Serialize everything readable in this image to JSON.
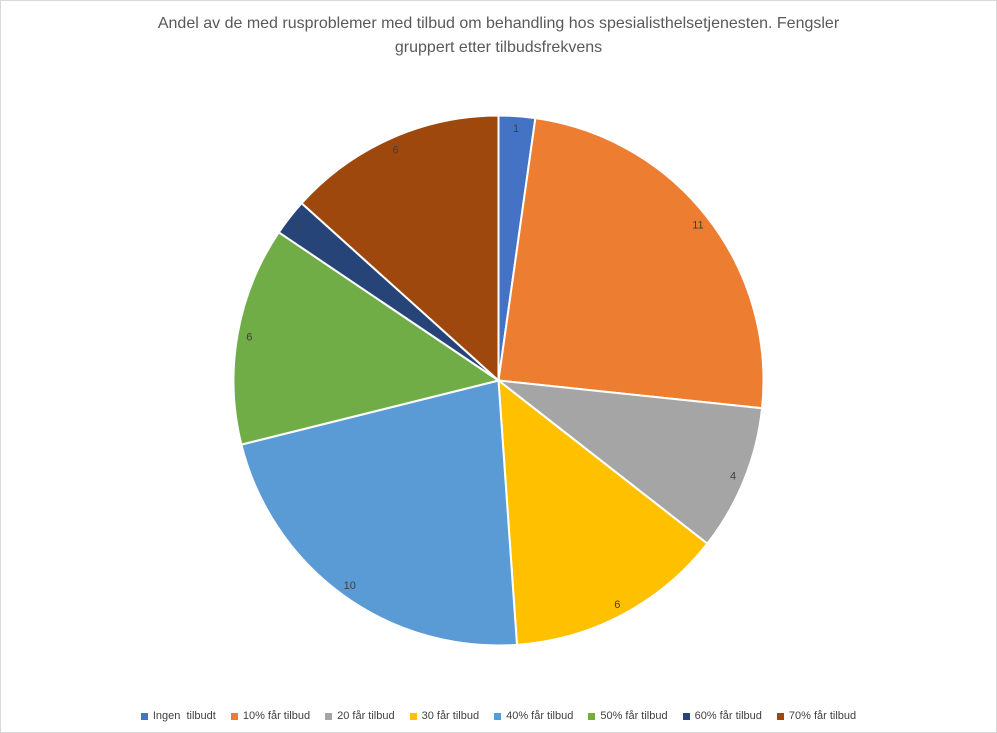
{
  "title": {
    "line1": "Andel av de med rusproblemer med tilbud om behandling hos spesialisthelsetjenesten. Fengsler",
    "line2": "gruppert etter tilbudsfrekvens",
    "color": "#595959"
  },
  "chart_data": {
    "type": "pie",
    "title": "Andel av de med rusproblemer med tilbud om behandling hos spesialisthelsetjenesten. Fengsler gruppert etter tilbudsfrekvens",
    "legend_position": "bottom",
    "direction": "clockwise",
    "start_angle_deg": 0,
    "data_labels": "value",
    "total": 45,
    "categories": [
      "Ingen  tilbudt",
      "10% får tilbud",
      "20 får tilbud",
      "30 får tilbud",
      "40% får tilbud",
      "50% får tilbud",
      "60% får tilbud",
      "70% får tilbud"
    ],
    "values": [
      1,
      11,
      4,
      6,
      10,
      6,
      1,
      6
    ],
    "colors": [
      "#4472C4",
      "#ED7D31",
      "#A5A5A5",
      "#FFC000",
      "#5B9BD5",
      "#70AD47",
      "#264478",
      "#9E480E"
    ],
    "label_color": "#404040",
    "slice_border_color": "#FFFFFF"
  }
}
